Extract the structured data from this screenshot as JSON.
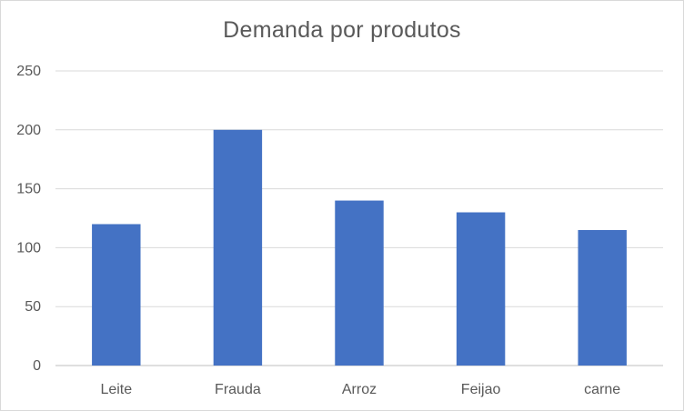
{
  "chart_data": {
    "type": "bar",
    "title": "Demanda por produtos",
    "categories": [
      "Leite",
      "Frauda",
      "Arroz",
      "Feijao",
      "carne"
    ],
    "series": [
      {
        "values": [
          120,
          200,
          140,
          130,
          115
        ],
        "color": "#4472c4"
      }
    ],
    "xlabel": "",
    "ylabel": "",
    "ylim": [
      0,
      250
    ],
    "yticks": [
      0,
      50,
      100,
      150,
      200,
      250
    ],
    "grid": true,
    "legend": "none"
  }
}
